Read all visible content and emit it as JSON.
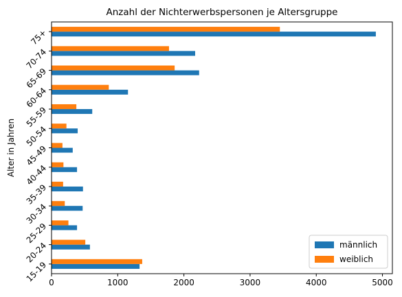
{
  "chart_data": {
    "type": "bar",
    "orientation": "horizontal",
    "title": "Anzahl der Nichterwerbspersonen je Altersgruppe",
    "xlabel": "",
    "ylabel": "Alter in Jahren",
    "categories": [
      "15-19",
      "20-24",
      "25-29",
      "30-34",
      "35-39",
      "40-44",
      "45-49",
      "50-54",
      "55-59",
      "60-64",
      "65-69",
      "70-74",
      "75+"
    ],
    "series": [
      {
        "name": "männlich",
        "color": "#1f77b4",
        "values": [
          1330,
          580,
          385,
          470,
          475,
          385,
          320,
          395,
          615,
          1155,
          2230,
          2170,
          4900
        ]
      },
      {
        "name": "weiblich",
        "color": "#ff7f0e",
        "values": [
          1370,
          510,
          255,
          200,
          175,
          180,
          165,
          225,
          375,
          865,
          1860,
          1775,
          3450
        ]
      }
    ],
    "xlim": [
      0,
      5150
    ],
    "xticks": [
      0,
      1000,
      2000,
      3000,
      4000,
      5000
    ],
    "grid": false,
    "legend_position": "lower right"
  }
}
